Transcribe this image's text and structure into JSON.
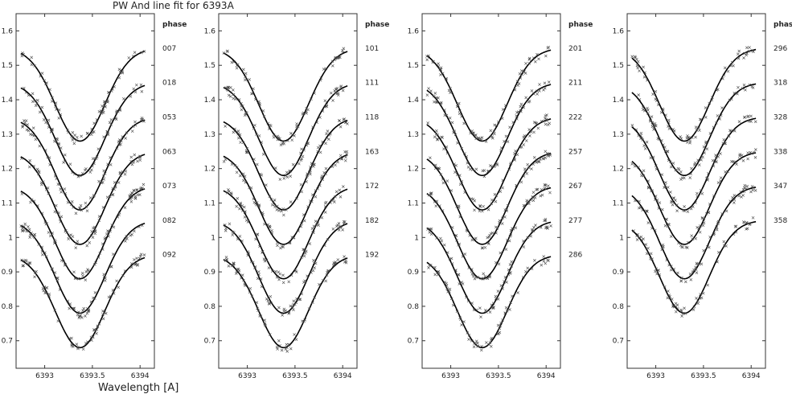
{
  "title": "PW And line fit for 6393A",
  "xlabel": "Wavelength [A]",
  "phase_header": "phase",
  "y_tick_labels": [
    "1.6",
    "1.5",
    "1.4",
    "1.3",
    "1.2",
    "1.1",
    "1",
    "0.9",
    "0.8",
    "0.7"
  ],
  "x_tick_labels": [
    "6393",
    "6393.5",
    "6394"
  ],
  "chart_data": [
    {
      "type": "line",
      "xlim": [
        6392.7,
        6394.15
      ],
      "ylim": [
        0.62,
        1.65
      ],
      "ylabel": "",
      "profile": {
        "center": 6393.37,
        "depth": 0.27,
        "width": 0.26
      },
      "x_range": [
        6392.75,
        6394.05
      ],
      "series": [
        {
          "name": "007",
          "offset": 1.55
        },
        {
          "name": "018",
          "offset": 1.45
        },
        {
          "name": "053",
          "offset": 1.35
        },
        {
          "name": "063",
          "offset": 1.25
        },
        {
          "name": "073",
          "offset": 1.15
        },
        {
          "name": "082",
          "offset": 1.05
        },
        {
          "name": "092",
          "offset": 0.95
        }
      ]
    },
    {
      "type": "line",
      "xlim": [
        6392.7,
        6394.15
      ],
      "ylim": [
        0.62,
        1.65
      ],
      "ylabel": "",
      "profile": {
        "center": 6393.38,
        "depth": 0.27,
        "width": 0.26
      },
      "x_range": [
        6392.75,
        6394.05
      ],
      "series": [
        {
          "name": "101",
          "offset": 1.55
        },
        {
          "name": "111",
          "offset": 1.45
        },
        {
          "name": "118",
          "offset": 1.35
        },
        {
          "name": "163",
          "offset": 1.25
        },
        {
          "name": "172",
          "offset": 1.15
        },
        {
          "name": "182",
          "offset": 1.05
        },
        {
          "name": "192",
          "offset": 0.95
        }
      ]
    },
    {
      "type": "line",
      "xlim": [
        6392.7,
        6394.15
      ],
      "ylim": [
        0.62,
        1.65
      ],
      "ylabel": "",
      "profile": {
        "center": 6393.33,
        "depth": 0.27,
        "width": 0.26
      },
      "x_range": [
        6392.75,
        6394.05
      ],
      "series": [
        {
          "name": "201",
          "offset": 1.55
        },
        {
          "name": "211",
          "offset": 1.45
        },
        {
          "name": "222",
          "offset": 1.35
        },
        {
          "name": "257",
          "offset": 1.25
        },
        {
          "name": "267",
          "offset": 1.15
        },
        {
          "name": "277",
          "offset": 1.05
        },
        {
          "name": "286",
          "offset": 0.95
        }
      ]
    },
    {
      "type": "line",
      "xlim": [
        6392.7,
        6394.15
      ],
      "ylim": [
        0.62,
        1.65
      ],
      "ylabel": "",
      "profile": {
        "center": 6393.3,
        "depth": 0.27,
        "width": 0.26
      },
      "x_range": [
        6392.75,
        6394.05
      ],
      "series": [
        {
          "name": "296",
          "offset": 1.55
        },
        {
          "name": "318",
          "offset": 1.45
        },
        {
          "name": "328",
          "offset": 1.35
        },
        {
          "name": "338",
          "offset": 1.25
        },
        {
          "name": "347",
          "offset": 1.15
        },
        {
          "name": "358",
          "offset": 1.05
        }
      ]
    }
  ]
}
